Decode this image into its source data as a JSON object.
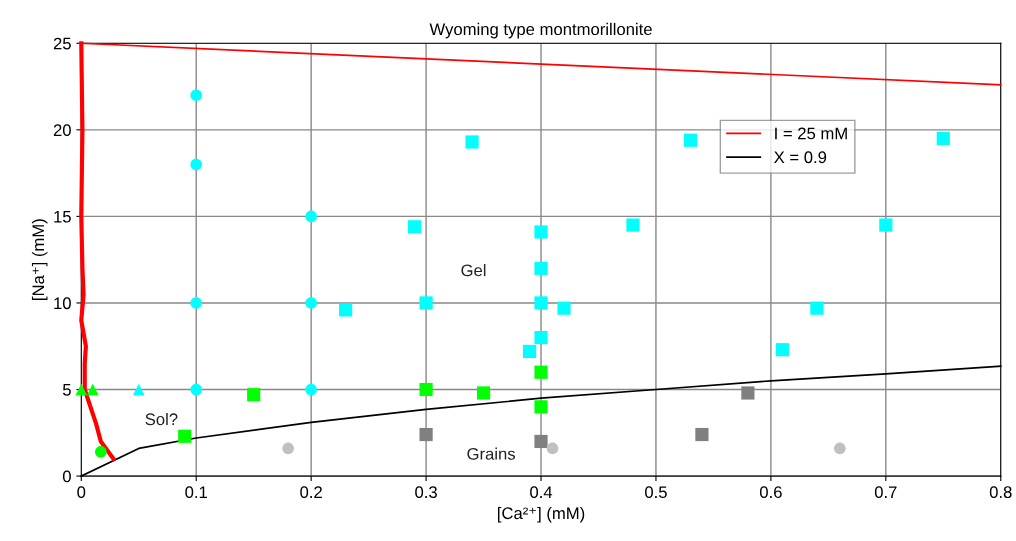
{
  "chart_data": {
    "type": "scatter",
    "title": "Wyoming type montmorillonite",
    "xlabel": "[Ca²⁺] (mM)",
    "ylabel": "[Na⁺] (mM)",
    "xlim": [
      0,
      0.8
    ],
    "ylim": [
      0,
      25
    ],
    "xticks": [
      0,
      0.1,
      0.2,
      0.3,
      0.4,
      0.5,
      0.6,
      0.7,
      0.8
    ],
    "yticks": [
      0,
      5,
      10,
      15,
      20,
      25
    ],
    "grid": true,
    "legend": "top right",
    "series": [
      {
        "type": "line",
        "name": "I = 25 mM",
        "color": "#ff0000",
        "marker": "none",
        "x": [
          0,
          0.8
        ],
        "values": [
          25,
          22.6
        ]
      },
      {
        "type": "line",
        "name": "X = 0.9",
        "color": "#000000",
        "marker": "none",
        "x": [
          0,
          0.05,
          0.1,
          0.2,
          0.3,
          0.4,
          0.5,
          0.6,
          0.7,
          0.8
        ],
        "values": [
          0,
          1.6,
          2.2,
          3.1,
          3.85,
          4.5,
          5.0,
          5.5,
          5.9,
          6.35
        ]
      },
      {
        "type": "line",
        "color": "#ff0000",
        "marker": "none",
        "x": [
          0,
          0.001,
          0,
          0.001,
          0.002,
          0,
          0.004,
          0.003,
          0.003,
          0.008,
          0.013,
          0.017,
          0.028
        ],
        "values": [
          25,
          20,
          15,
          12,
          10.5,
          9,
          7.5,
          6.5,
          5,
          4,
          3,
          2,
          1.0
        ]
      },
      {
        "color": "#00ffff",
        "marker": "circle",
        "x": [
          0.1,
          0.1,
          0.2,
          0.1,
          0.2,
          0.1,
          0.2
        ],
        "values": [
          22,
          18,
          15,
          10,
          10,
          5,
          5
        ]
      },
      {
        "color": "#00ffff",
        "marker": "triangle",
        "x": [
          0.05
        ],
        "values": [
          5
        ]
      },
      {
        "color": "#00ff00",
        "marker": "triangle",
        "x": [
          0,
          0.01
        ],
        "values": [
          5,
          5
        ]
      },
      {
        "color": "#00ff00",
        "marker": "circle",
        "x": [
          0.017
        ],
        "values": [
          1.4
        ]
      },
      {
        "color": "#00ff00",
        "marker": "square",
        "x": [
          0.09,
          0.15,
          0.3,
          0.35,
          0.4,
          0.4
        ],
        "values": [
          2.3,
          4.7,
          5,
          4.8,
          6,
          4
        ]
      },
      {
        "color": "#00ffff",
        "marker": "square",
        "x": [
          0.34,
          0.29,
          0.23,
          0.3,
          0.39,
          0.4,
          0.4,
          0.4,
          0.4,
          0.42,
          0.48,
          0.53,
          0.61,
          0.64,
          0.7,
          0.75
        ],
        "values": [
          19.3,
          14.4,
          9.6,
          10,
          7.2,
          8,
          10,
          12,
          14.1,
          9.7,
          14.5,
          19.4,
          7.3,
          9.7,
          14.5,
          19.5
        ]
      },
      {
        "color": "#808080",
        "marker": "square",
        "x": [
          0.3,
          0.4,
          0.54,
          0.58
        ],
        "values": [
          2.4,
          2.0,
          2.4,
          4.8
        ]
      },
      {
        "color": "#c0c0c0",
        "marker": "circle",
        "x": [
          0.18,
          0.41,
          0.66
        ],
        "values": [
          1.6,
          1.6,
          1.6
        ]
      }
    ],
    "annotations": [
      "Gel",
      "Sol?",
      "Grains"
    ]
  }
}
